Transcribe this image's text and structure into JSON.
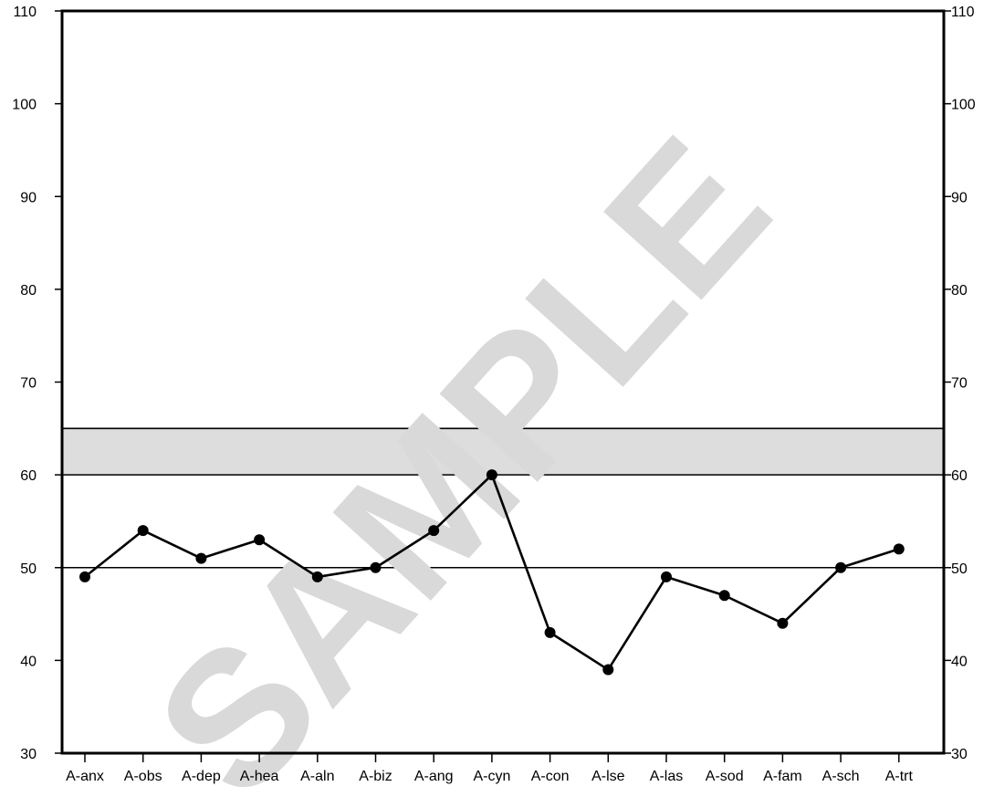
{
  "watermark": "SAMPLE",
  "chart_data": {
    "type": "line",
    "title": "",
    "xlabel": "",
    "ylabel": "",
    "ylim": [
      30,
      110
    ],
    "y_ticks": [
      30,
      40,
      50,
      60,
      70,
      80,
      90,
      100,
      110
    ],
    "y_tick_labels": [
      "30",
      "40",
      "50",
      "60",
      "70",
      "80",
      "90",
      "100",
      "110"
    ],
    "y_axis_sides": [
      "left",
      "right"
    ],
    "categories": [
      "A-anx",
      "A-obs",
      "A-dep",
      "A-hea",
      "A-aln",
      "A-biz",
      "A-ang",
      "A-cyn",
      "A-con",
      "A-lse",
      "A-las",
      "A-sod",
      "A-fam",
      "A-sch",
      "A-trt"
    ],
    "series": [
      {
        "values": [
          49,
          54,
          51,
          53,
          49,
          50,
          54,
          60,
          43,
          39,
          49,
          47,
          44,
          50,
          52
        ]
      }
    ],
    "reference_lines": [
      50,
      60,
      65
    ],
    "shaded_band": [
      60,
      65
    ],
    "grid": false,
    "colors": {
      "line": "#000000",
      "band": "#dddddd",
      "watermark": "#d9d9d9"
    }
  }
}
